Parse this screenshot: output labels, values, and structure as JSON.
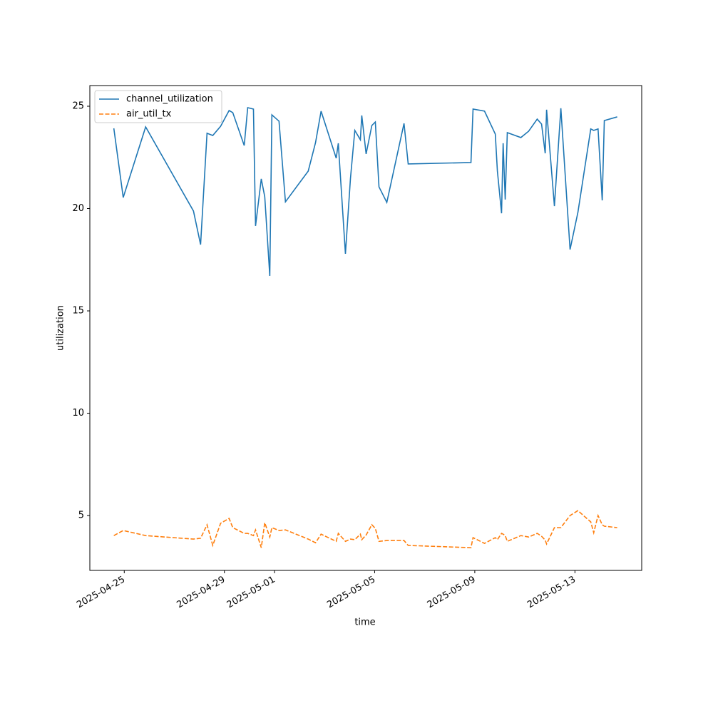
{
  "chart_data": {
    "type": "line",
    "x_label": "time",
    "y_label": "utilization",
    "x": [
      "2025-04-24T14:00",
      "2025-04-24T23:00",
      "2025-04-25T20:30",
      "2025-04-27T18:20",
      "2025-04-28T01:10",
      "2025-04-28T07:20",
      "2025-04-28T12:50",
      "2025-04-28T20:20",
      "2025-04-29T04:30",
      "2025-04-29T08:00",
      "2025-04-29T19:00",
      "2025-04-29T22:20",
      "2025-04-30T03:50",
      "2025-04-30T05:50",
      "2025-04-30T11:20",
      "2025-04-30T14:40",
      "2025-04-30T19:30",
      "2025-04-30T21:30",
      "2025-05-01T04:20",
      "2025-05-01T10:30",
      "2025-05-02T08:20",
      "2025-05-02T15:20",
      "2025-05-02T20:40",
      "2025-05-03T11:10",
      "2025-05-03T13:10",
      "2025-05-03T20:00",
      "2025-05-04T00:50",
      "2025-05-04T05:00",
      "2025-05-04T10:20",
      "2025-05-04T11:40",
      "2025-05-04T15:50",
      "2025-05-04T21:20",
      "2025-05-05T00:40",
      "2025-05-05T04:10",
      "2025-05-05T11:40",
      "2025-05-06T04:10",
      "2025-05-06T08:10",
      "2025-05-08T20:20",
      "2025-05-08T22:20",
      "2025-05-09T09:20",
      "2025-05-09T19:40",
      "2025-05-09T21:40",
      "2025-05-10T01:40",
      "2025-05-10T03:10",
      "2025-05-10T05:10",
      "2025-05-10T07:10",
      "2025-05-10T20:10",
      "2025-05-11T03:40",
      "2025-05-11T11:50",
      "2025-05-11T16:00",
      "2025-05-11T19:30",
      "2025-05-11T20:50",
      "2025-05-12T04:20",
      "2025-05-12T10:30",
      "2025-05-12T19:20",
      "2025-05-13T02:50",
      "2025-05-13T15:10",
      "2025-05-13T18:00",
      "2025-05-13T22:10",
      "2025-05-14T02:10",
      "2025-05-14T04:10",
      "2025-05-14T16:30"
    ],
    "series": [
      {
        "name": "channel_utilization",
        "color": "#1f77b4",
        "dash": "solid",
        "values": [
          23.92,
          20.54,
          23.99,
          19.88,
          18.24,
          23.68,
          23.57,
          24.02,
          24.79,
          24.69,
          23.08,
          24.93,
          24.86,
          19.15,
          21.45,
          20.58,
          16.71,
          24.58,
          24.27,
          20.33,
          21.83,
          23.22,
          24.76,
          22.46,
          23.19,
          17.79,
          21.48,
          23.82,
          23.36,
          24.55,
          22.67,
          24.06,
          24.23,
          21.06,
          20.3,
          24.16,
          22.18,
          22.25,
          24.86,
          24.76,
          23.64,
          21.83,
          19.77,
          23.19,
          20.44,
          23.71,
          23.47,
          23.78,
          24.37,
          24.13,
          22.7,
          24.83,
          20.12,
          24.9,
          18.0,
          19.81,
          23.89,
          23.82,
          23.89,
          20.4,
          24.3,
          24.48
        ]
      },
      {
        "name": "air_util_tx",
        "color": "#ff7f0e",
        "dash": "dashed",
        "values": [
          4.02,
          4.27,
          4.02,
          3.85,
          3.89,
          4.55,
          3.54,
          4.62,
          4.86,
          4.41,
          4.13,
          4.13,
          4.02,
          4.3,
          3.43,
          4.65,
          3.95,
          4.41,
          4.27,
          4.3,
          3.85,
          3.67,
          4.09,
          3.74,
          4.13,
          3.74,
          3.85,
          3.82,
          4.09,
          3.82,
          4.05,
          4.55,
          4.37,
          3.74,
          3.78,
          3.78,
          3.54,
          3.43,
          3.92,
          3.64,
          3.92,
          3.82,
          4.13,
          4.09,
          4.02,
          3.74,
          4.02,
          3.95,
          4.13,
          3.99,
          3.8,
          3.61,
          4.41,
          4.41,
          5.0,
          5.24,
          4.69,
          4.16,
          5.0,
          4.55,
          4.48,
          4.41
        ]
      }
    ],
    "xlim": [
      "2025-04-23T15:00",
      "2025-05-15T16:00"
    ],
    "xticks": [
      "2025-04-25",
      "2025-04-29",
      "2025-05-01",
      "2025-05-05",
      "2025-05-09",
      "2025-05-13"
    ],
    "ylim": [
      2.32,
      26.01
    ],
    "yticks": [
      5,
      10,
      15,
      20,
      25
    ],
    "legend": "upper left"
  }
}
